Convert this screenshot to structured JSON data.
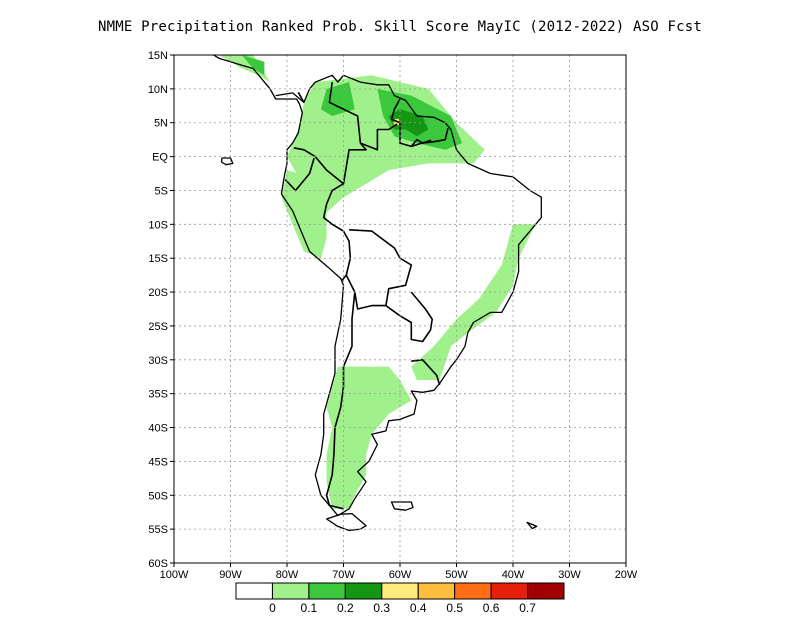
{
  "title": "NMME  Precipitation Ranked Prob. Skill Score MayIC (2012-2022) ASO Fcst",
  "map": {
    "lon_range": [
      -100,
      -20
    ],
    "lat_range": [
      -60,
      15
    ],
    "lat_ticks": [
      {
        "value": 15,
        "label": "15N"
      },
      {
        "value": 10,
        "label": "10N"
      },
      {
        "value": 5,
        "label": "5N"
      },
      {
        "value": 0,
        "label": "EQ"
      },
      {
        "value": -5,
        "label": "5S"
      },
      {
        "value": -10,
        "label": "10S"
      },
      {
        "value": -15,
        "label": "15S"
      },
      {
        "value": -20,
        "label": "20S"
      },
      {
        "value": -25,
        "label": "25S"
      },
      {
        "value": -30,
        "label": "30S"
      },
      {
        "value": -35,
        "label": "35S"
      },
      {
        "value": -40,
        "label": "40S"
      },
      {
        "value": -45,
        "label": "45S"
      },
      {
        "value": -50,
        "label": "50S"
      },
      {
        "value": -55,
        "label": "55S"
      },
      {
        "value": -60,
        "label": "60S"
      }
    ],
    "lon_ticks": [
      {
        "value": -100,
        "label": "100W"
      },
      {
        "value": -90,
        "label": "90W"
      },
      {
        "value": -80,
        "label": "80W"
      },
      {
        "value": -70,
        "label": "70W"
      },
      {
        "value": -60,
        "label": "60W"
      },
      {
        "value": -50,
        "label": "50W"
      },
      {
        "value": -40,
        "label": "40W"
      },
      {
        "value": -30,
        "label": "30W"
      },
      {
        "value": -20,
        "label": "20W"
      }
    ],
    "grid": true
  },
  "colorbar": {
    "colors": [
      "#ffffff",
      "#a0f08c",
      "#3cc83c",
      "#149614",
      "#ffeb7d",
      "#ffbe3c",
      "#ff6e14",
      "#e61e0a",
      "#a00000"
    ],
    "labels": [
      "0",
      "0.1",
      "0.2",
      "0.3",
      "0.4",
      "0.5",
      "0.6",
      "0.7"
    ]
  },
  "skill_regions": [
    {
      "level": 1,
      "polygon": [
        [
          -75,
          11
        ],
        [
          -65,
          12
        ],
        [
          -55,
          10
        ],
        [
          -50,
          5
        ],
        [
          -45,
          1
        ],
        [
          -47,
          -1
        ],
        [
          -55,
          -1
        ],
        [
          -62,
          -2
        ],
        [
          -66,
          -4
        ],
        [
          -70,
          -6
        ],
        [
          -74,
          -9
        ],
        [
          -76,
          -7
        ],
        [
          -78,
          -3
        ],
        [
          -80,
          0
        ],
        [
          -78,
          4
        ],
        [
          -77,
          8
        ]
      ]
    },
    {
      "level": 1,
      "polygon": [
        [
          -80,
          -2
        ],
        [
          -76,
          -3
        ],
        [
          -73,
          -7
        ],
        [
          -73,
          -12
        ],
        [
          -74,
          -15
        ],
        [
          -77,
          -14
        ],
        [
          -79,
          -10
        ],
        [
          -81,
          -6
        ]
      ]
    },
    {
      "level": 1,
      "polygon": [
        [
          -92,
          15
        ],
        [
          -86,
          15
        ],
        [
          -83,
          11
        ],
        [
          -85,
          12
        ],
        [
          -88,
          13
        ]
      ]
    },
    {
      "level": 1,
      "polygon": [
        [
          -40,
          -10
        ],
        [
          -36,
          -10
        ],
        [
          -39,
          -15
        ],
        [
          -40,
          -19
        ],
        [
          -43,
          -23
        ],
        [
          -48,
          -26
        ],
        [
          -51,
          -28
        ],
        [
          -53,
          -33
        ],
        [
          -57,
          -33
        ],
        [
          -58,
          -31
        ],
        [
          -54,
          -28
        ],
        [
          -50,
          -24
        ],
        [
          -46,
          -21
        ],
        [
          -42,
          -16
        ]
      ]
    },
    {
      "level": 1,
      "polygon": [
        [
          -71,
          -31
        ],
        [
          -62,
          -31
        ],
        [
          -60,
          -33
        ],
        [
          -58,
          -36
        ],
        [
          -62,
          -38
        ],
        [
          -65,
          -41
        ],
        [
          -66,
          -44
        ],
        [
          -66,
          -47
        ],
        [
          -68,
          -50
        ],
        [
          -69,
          -52
        ],
        [
          -72,
          -52
        ],
        [
          -73,
          -48
        ],
        [
          -73,
          -44
        ],
        [
          -72,
          -40
        ],
        [
          -73,
          -37
        ],
        [
          -72,
          -34
        ]
      ]
    },
    {
      "level": 2,
      "polygon": [
        [
          -73,
          10
        ],
        [
          -69,
          11
        ],
        [
          -68,
          7
        ],
        [
          -72,
          6
        ],
        [
          -74,
          7
        ]
      ]
    },
    {
      "level": 2,
      "polygon": [
        [
          -64,
          10
        ],
        [
          -58,
          9
        ],
        [
          -51,
          6
        ],
        [
          -49,
          2
        ],
        [
          -52,
          1
        ],
        [
          -57,
          2
        ],
        [
          -61,
          3
        ],
        [
          -63,
          6
        ]
      ]
    },
    {
      "level": 2,
      "polygon": [
        [
          -88,
          15
        ],
        [
          -84,
          14
        ],
        [
          -84,
          12
        ],
        [
          -86,
          13
        ]
      ]
    },
    {
      "level": 3,
      "polygon": [
        [
          -60,
          7
        ],
        [
          -56,
          6
        ],
        [
          -55,
          4
        ],
        [
          -57,
          3
        ],
        [
          -59,
          4
        ]
      ]
    },
    {
      "level": 3,
      "polygon": [
        [
          -62,
          6
        ],
        [
          -60,
          7
        ],
        [
          -59,
          4
        ],
        [
          -61,
          4
        ]
      ]
    },
    {
      "level": 4,
      "polygon": [
        [
          -61,
          5.5
        ],
        [
          -60.2,
          5.6
        ],
        [
          -60.2,
          4.6
        ],
        [
          -61.2,
          4.8
        ]
      ]
    }
  ]
}
